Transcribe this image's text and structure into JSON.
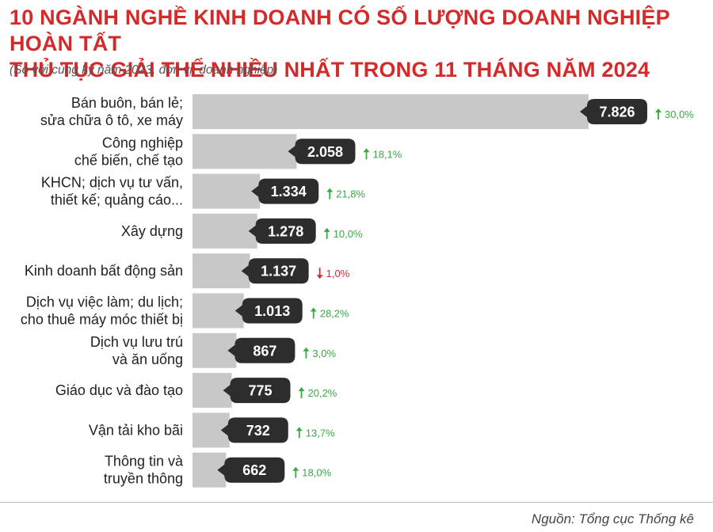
{
  "chart_data": {
    "type": "bar",
    "orientation": "horizontal",
    "title": "10 NGÀNH NGHỀ KINH DOANH CÓ SỐ LƯỢNG DOANH NGHIỆP HOÀN TẤT THỦ TỤC GIẢI THỂ NHIỀU NHẤT TRONG 11 THÁNG NĂM 2024",
    "title_lines": [
      "10 NGÀNH NGHỀ KINH DOANH CÓ SỐ LƯỢNG DOANH NGHIỆP HOÀN TẤT",
      "THỦ TỤC GIẢI THỂ NHIỀU NHẤT TRONG 11 THÁNG NĂM 2024"
    ],
    "subtitle": "(So với cùng kỳ năm 2023, đơn vị: doanh nghiệp)",
    "source": "Nguồn: Tổng cục Thống kê",
    "categories": [
      [
        "Bán buôn, bán lẻ;",
        "sửa chữa ô tô, xe máy"
      ],
      [
        "Công nghiệp",
        "chế biến, chế tạo"
      ],
      [
        "KHCN; dịch vụ tư vấn,",
        "thiết kế; quảng cáo..."
      ],
      [
        "Xây dựng"
      ],
      [
        "Kinh doanh bất động sản"
      ],
      [
        "Dịch vụ việc làm; du lịch;",
        "cho thuê máy móc thiết bị"
      ],
      [
        "Dịch vụ lưu trú",
        "và ăn uống"
      ],
      [
        "Giáo dục và đào tạo"
      ],
      [
        "Vận tải kho bãi"
      ],
      [
        "Thông tin và",
        "truyền thông"
      ]
    ],
    "values": [
      7826,
      2058,
      1334,
      1278,
      1137,
      1013,
      867,
      775,
      732,
      662
    ],
    "value_labels": [
      "7.826",
      "2.058",
      "1.334",
      "1.278",
      "1.137",
      "1.013",
      "867",
      "775",
      "732",
      "662"
    ],
    "changes": [
      "30,0%",
      "18,1%",
      "21,8%",
      "10,0%",
      "1,0%",
      "28,2%",
      "3,0%",
      "20,2%",
      "13,7%",
      "18,0%"
    ],
    "change_directions": [
      "up",
      "up",
      "up",
      "up",
      "down",
      "up",
      "up",
      "up",
      "up",
      "up"
    ],
    "xlim": [
      0,
      7826
    ],
    "grid": false,
    "legend": "none",
    "colors": {
      "title": "#d42a2a",
      "bar": "#c8c8c8",
      "label_bubble": "#2d2d2d",
      "label_text": "#ffffff",
      "up": "#3aa845",
      "down": "#d42a2a",
      "category_text": "#222222"
    }
  }
}
